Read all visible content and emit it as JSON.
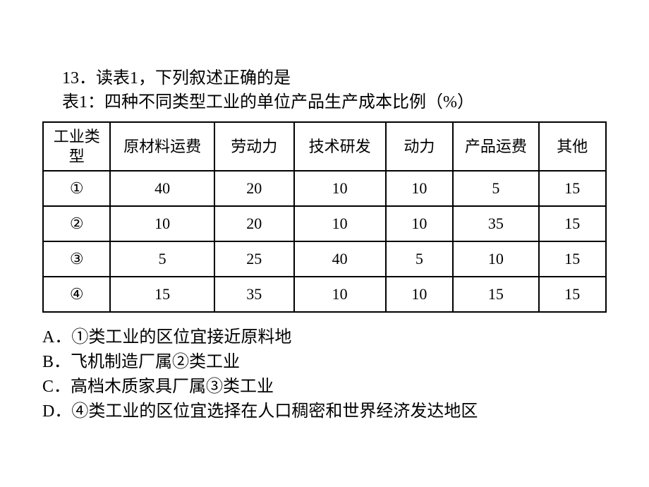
{
  "question": {
    "number_text": "13．读表1，下列叙述正确的是",
    "table_caption": "表1：四种不同类型工业的单位产品生产成本比例（%）"
  },
  "table": {
    "columns": [
      "工业类型",
      "原材料运费",
      "劳动力",
      "技术研发",
      "动力",
      "产品运费",
      "其他"
    ],
    "rows": [
      [
        "①",
        "40",
        "20",
        "10",
        "10",
        "5",
        "15"
      ],
      [
        "②",
        "10",
        "20",
        "10",
        "10",
        "35",
        "15"
      ],
      [
        "③",
        "5",
        "25",
        "40",
        "5",
        "10",
        "15"
      ],
      [
        "④",
        "15",
        "35",
        "10",
        "10",
        "15",
        "15"
      ]
    ],
    "border_color": "#000000",
    "background_color": "#ffffff",
    "header_fontsize": 22,
    "cell_fontsize": 22
  },
  "options": {
    "a": "A．①类工业的区位宜接近原料地",
    "b": "B．飞机制造厂属②类工业",
    "c": "C．高档木质家具厂属③类工业",
    "d": "D．④类工业的区位宜选择在人口稠密和世界经济发达地区"
  }
}
